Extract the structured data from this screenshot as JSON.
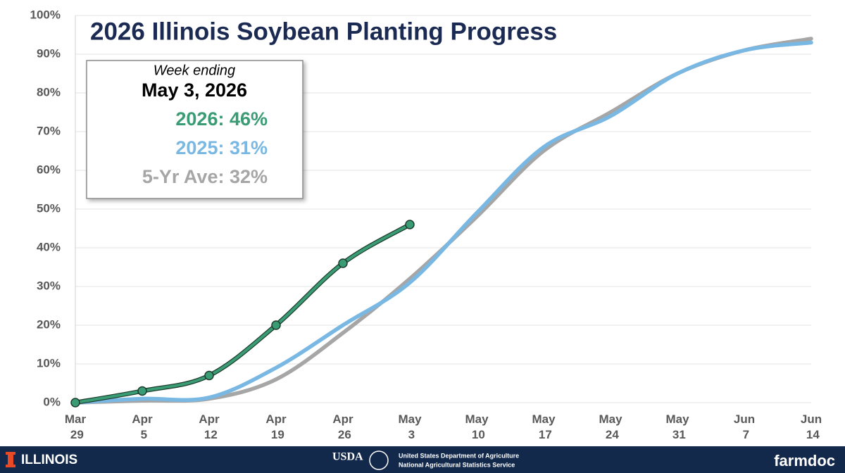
{
  "chart_data": {
    "type": "line",
    "title": "2026 Illinois Soybean Planting Progress",
    "categories": [
      "Mar 29",
      "Apr 5",
      "Apr 12",
      "Apr 19",
      "Apr 26",
      "May 3",
      "May 10",
      "May 17",
      "May 24",
      "May 31",
      "Jun 7",
      "Jun 14"
    ],
    "series": [
      {
        "name": "5-Yr Ave",
        "color": "#a6a6a6",
        "values": [
          0,
          0.5,
          1,
          6,
          18,
          32,
          48,
          65,
          75,
          85,
          91,
          94
        ]
      },
      {
        "name": "2025",
        "color": "#7ab8e4",
        "values": [
          0,
          1,
          1.3,
          9,
          20,
          31,
          49,
          66,
          74,
          85,
          91,
          93
        ]
      },
      {
        "name": "2026",
        "color": "#3a9c74",
        "values": [
          0,
          3,
          7,
          20,
          36,
          46,
          null,
          null,
          null,
          null,
          null,
          null
        ]
      }
    ],
    "ylim": [
      0,
      100
    ],
    "yticks": [
      {
        "value": 0,
        "label": "0%"
      },
      {
        "value": 10,
        "label": "10%"
      },
      {
        "value": 20,
        "label": "20%"
      },
      {
        "value": 30,
        "label": "30%"
      },
      {
        "value": 40,
        "label": "40%"
      },
      {
        "value": 50,
        "label": "50%"
      },
      {
        "value": 60,
        "label": "60%"
      },
      {
        "value": 70,
        "label": "70%"
      },
      {
        "value": 80,
        "label": "80%"
      },
      {
        "value": 90,
        "label": "90%"
      },
      {
        "value": 100,
        "label": "100%"
      }
    ],
    "grid": true,
    "callout": {
      "heading": "Week ending",
      "date": "May 3, 2026",
      "rows": [
        "5-Yr Ave: 32%",
        "2025: 31%",
        "2026: 46%"
      ]
    }
  },
  "footer": {
    "left": "ILLINOIS",
    "usda": "USDA",
    "agency": "United States Department of Agriculture",
    "service": "National Agricultural Statistics Service",
    "right": "farmdoc"
  }
}
